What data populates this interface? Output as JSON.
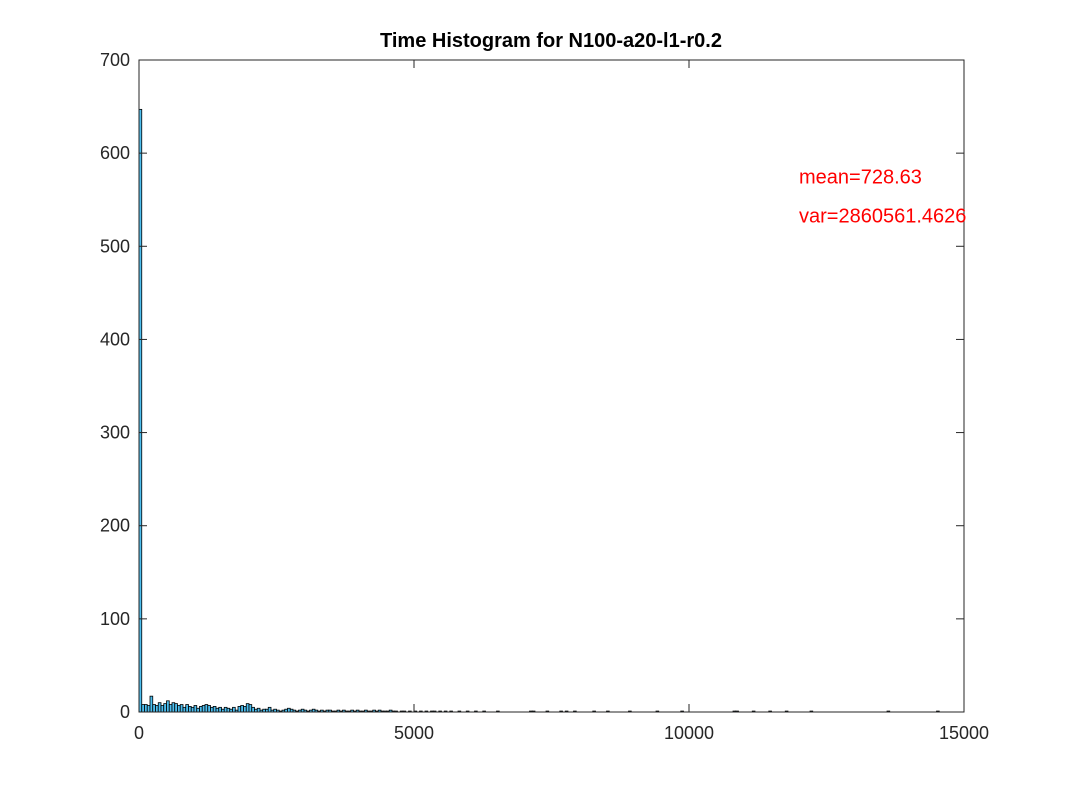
{
  "chart_data": {
    "type": "bar",
    "title": "Time Histogram for N100-a20-l1-r0.2",
    "xlabel": "",
    "ylabel": "",
    "xlim": [
      0,
      15000
    ],
    "ylim": [
      0,
      700
    ],
    "xticks": [
      0,
      5000,
      10000,
      15000
    ],
    "yticks": [
      0,
      100,
      200,
      300,
      400,
      500,
      600,
      700
    ],
    "xtick_labels": [
      "0",
      "5000",
      "10000",
      "15000"
    ],
    "ytick_labels": [
      "0",
      "100",
      "200",
      "300",
      "400",
      "500",
      "600",
      "700"
    ],
    "bin_width": 50,
    "bar_color": "#4dbeee",
    "edge_color": "#000000",
    "grid": false,
    "bins": [
      {
        "x": 0,
        "y": 647
      },
      {
        "x": 50,
        "y": 8
      },
      {
        "x": 100,
        "y": 8
      },
      {
        "x": 150,
        "y": 7
      },
      {
        "x": 200,
        "y": 17
      },
      {
        "x": 250,
        "y": 8
      },
      {
        "x": 300,
        "y": 7
      },
      {
        "x": 350,
        "y": 10
      },
      {
        "x": 400,
        "y": 7
      },
      {
        "x": 450,
        "y": 9
      },
      {
        "x": 500,
        "y": 12
      },
      {
        "x": 550,
        "y": 8
      },
      {
        "x": 600,
        "y": 10
      },
      {
        "x": 650,
        "y": 9
      },
      {
        "x": 700,
        "y": 7
      },
      {
        "x": 750,
        "y": 8
      },
      {
        "x": 800,
        "y": 5
      },
      {
        "x": 850,
        "y": 8
      },
      {
        "x": 900,
        "y": 6
      },
      {
        "x": 950,
        "y": 5
      },
      {
        "x": 1000,
        "y": 7
      },
      {
        "x": 1050,
        "y": 4
      },
      {
        "x": 1100,
        "y": 6
      },
      {
        "x": 1150,
        "y": 7
      },
      {
        "x": 1200,
        "y": 8
      },
      {
        "x": 1250,
        "y": 7
      },
      {
        "x": 1300,
        "y": 5
      },
      {
        "x": 1350,
        "y": 6
      },
      {
        "x": 1400,
        "y": 4
      },
      {
        "x": 1450,
        "y": 5
      },
      {
        "x": 1500,
        "y": 3
      },
      {
        "x": 1550,
        "y": 5
      },
      {
        "x": 1600,
        "y": 4
      },
      {
        "x": 1650,
        "y": 3
      },
      {
        "x": 1700,
        "y": 5
      },
      {
        "x": 1750,
        "y": 2
      },
      {
        "x": 1800,
        "y": 6
      },
      {
        "x": 1850,
        "y": 7
      },
      {
        "x": 1900,
        "y": 6
      },
      {
        "x": 1950,
        "y": 9
      },
      {
        "x": 2000,
        "y": 8
      },
      {
        "x": 2050,
        "y": 5
      },
      {
        "x": 2100,
        "y": 3
      },
      {
        "x": 2150,
        "y": 4
      },
      {
        "x": 2200,
        "y": 2
      },
      {
        "x": 2250,
        "y": 3
      },
      {
        "x": 2300,
        "y": 3
      },
      {
        "x": 2350,
        "y": 5
      },
      {
        "x": 2400,
        "y": 2
      },
      {
        "x": 2450,
        "y": 3
      },
      {
        "x": 2500,
        "y": 2
      },
      {
        "x": 2550,
        "y": 1
      },
      {
        "x": 2600,
        "y": 2
      },
      {
        "x": 2650,
        "y": 3
      },
      {
        "x": 2700,
        "y": 4
      },
      {
        "x": 2750,
        "y": 3
      },
      {
        "x": 2800,
        "y": 2
      },
      {
        "x": 2850,
        "y": 1
      },
      {
        "x": 2900,
        "y": 2
      },
      {
        "x": 2950,
        "y": 3
      },
      {
        "x": 3000,
        "y": 2
      },
      {
        "x": 3050,
        "y": 1
      },
      {
        "x": 3100,
        "y": 2
      },
      {
        "x": 3150,
        "y": 3
      },
      {
        "x": 3200,
        "y": 2
      },
      {
        "x": 3250,
        "y": 1
      },
      {
        "x": 3300,
        "y": 2
      },
      {
        "x": 3350,
        "y": 1
      },
      {
        "x": 3400,
        "y": 2
      },
      {
        "x": 3450,
        "y": 2
      },
      {
        "x": 3500,
        "y": 1
      },
      {
        "x": 3550,
        "y": 1
      },
      {
        "x": 3600,
        "y": 2
      },
      {
        "x": 3650,
        "y": 1
      },
      {
        "x": 3700,
        "y": 2
      },
      {
        "x": 3750,
        "y": 1
      },
      {
        "x": 3800,
        "y": 1
      },
      {
        "x": 3850,
        "y": 2
      },
      {
        "x": 3900,
        "y": 1
      },
      {
        "x": 3950,
        "y": 2
      },
      {
        "x": 4000,
        "y": 1
      },
      {
        "x": 4050,
        "y": 1
      },
      {
        "x": 4100,
        "y": 2
      },
      {
        "x": 4150,
        "y": 1
      },
      {
        "x": 4200,
        "y": 1
      },
      {
        "x": 4250,
        "y": 2
      },
      {
        "x": 4300,
        "y": 1
      },
      {
        "x": 4350,
        "y": 2
      },
      {
        "x": 4400,
        "y": 1
      },
      {
        "x": 4450,
        "y": 1
      },
      {
        "x": 4500,
        "y": 1
      },
      {
        "x": 4550,
        "y": 2
      },
      {
        "x": 4600,
        "y": 1
      },
      {
        "x": 4650,
        "y": 1
      },
      {
        "x": 4750,
        "y": 1
      },
      {
        "x": 4800,
        "y": 1
      },
      {
        "x": 4900,
        "y": 1
      },
      {
        "x": 5000,
        "y": 1
      },
      {
        "x": 5100,
        "y": 1
      },
      {
        "x": 5200,
        "y": 1
      },
      {
        "x": 5300,
        "y": 1
      },
      {
        "x": 5350,
        "y": 1
      },
      {
        "x": 5450,
        "y": 1
      },
      {
        "x": 5550,
        "y": 1
      },
      {
        "x": 5650,
        "y": 1
      },
      {
        "x": 5800,
        "y": 1
      },
      {
        "x": 5950,
        "y": 1
      },
      {
        "x": 6100,
        "y": 1
      },
      {
        "x": 6250,
        "y": 1
      },
      {
        "x": 6500,
        "y": 1
      },
      {
        "x": 7100,
        "y": 1
      },
      {
        "x": 7150,
        "y": 1
      },
      {
        "x": 7400,
        "y": 1
      },
      {
        "x": 7650,
        "y": 1
      },
      {
        "x": 7750,
        "y": 1
      },
      {
        "x": 7900,
        "y": 1
      },
      {
        "x": 8250,
        "y": 1
      },
      {
        "x": 8500,
        "y": 1
      },
      {
        "x": 8900,
        "y": 1
      },
      {
        "x": 9400,
        "y": 1
      },
      {
        "x": 9850,
        "y": 1
      },
      {
        "x": 10800,
        "y": 1
      },
      {
        "x": 10850,
        "y": 1
      },
      {
        "x": 11150,
        "y": 1
      },
      {
        "x": 11450,
        "y": 1
      },
      {
        "x": 11750,
        "y": 1
      },
      {
        "x": 12200,
        "y": 1
      },
      {
        "x": 13600,
        "y": 1
      },
      {
        "x": 14500,
        "y": 1
      }
    ],
    "annotations": [
      {
        "text": "mean=728.63",
        "x": 12000,
        "y": 575,
        "color": "#ff0000"
      },
      {
        "text": "var=2860561.4626",
        "x": 12000,
        "y": 533,
        "color": "#ff0000"
      }
    ]
  }
}
